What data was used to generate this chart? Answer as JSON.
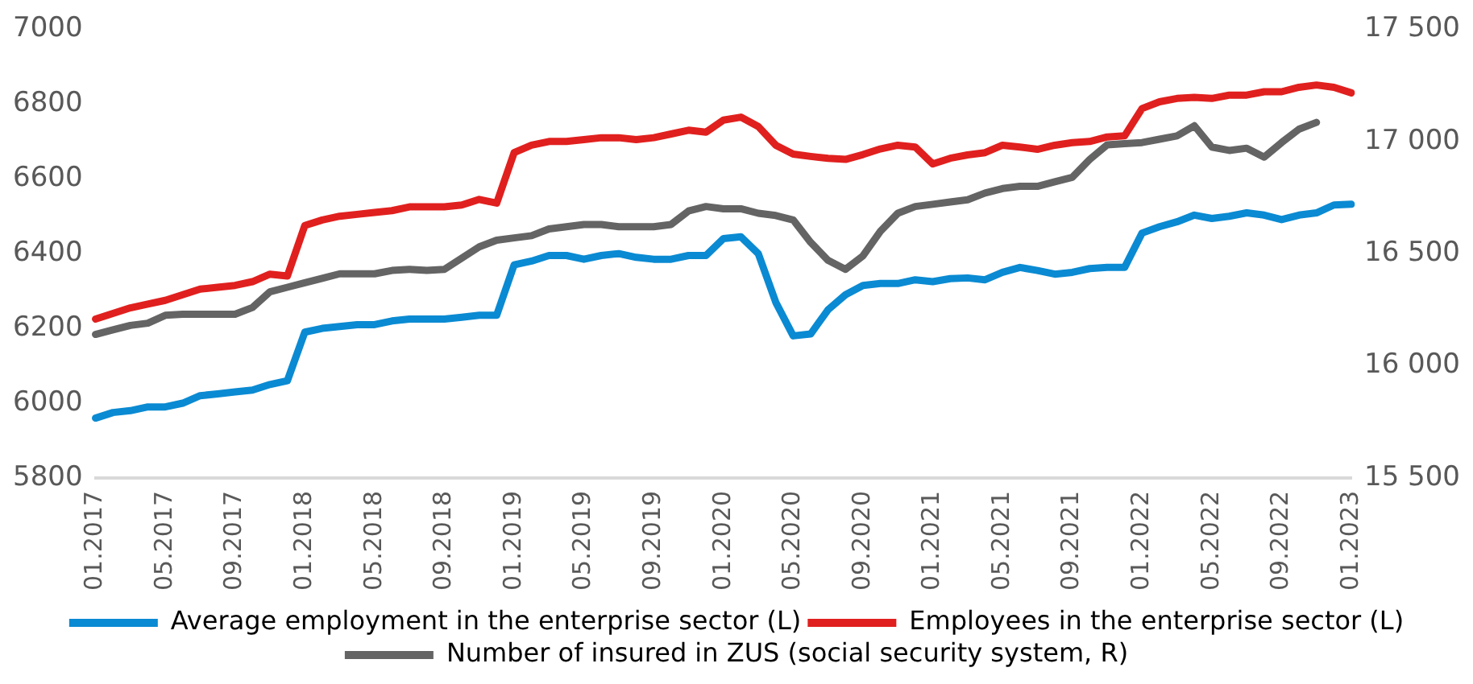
{
  "chart_data": {
    "type": "line",
    "categories": [
      "01.2017",
      null,
      null,
      null,
      "05.2017",
      null,
      null,
      null,
      "09.2017",
      null,
      null,
      null,
      "01.2018",
      null,
      null,
      null,
      "05.2018",
      null,
      null,
      null,
      "09.2018",
      null,
      null,
      null,
      "01.2019",
      null,
      null,
      null,
      "05.2019",
      null,
      null,
      null,
      "09.2019",
      null,
      null,
      null,
      "01.2020",
      null,
      null,
      null,
      "05.2020",
      null,
      null,
      null,
      "09.2020",
      null,
      null,
      null,
      "01.2021",
      null,
      null,
      null,
      "05.2021",
      null,
      null,
      null,
      "09.2021",
      null,
      null,
      null,
      "01.2022",
      null,
      null,
      null,
      "05.2022",
      null,
      null,
      null,
      "09.2022",
      null,
      null,
      null,
      "01.2023"
    ],
    "series": [
      {
        "name": "Average employment in the enterprise sector (L)",
        "color": "#0a8ad2",
        "values": [
          5960,
          5975,
          5980,
          5990,
          5990,
          6000,
          6020,
          6025,
          6030,
          6035,
          6050,
          6060,
          6190,
          6200,
          6205,
          6210,
          6210,
          6220,
          6225,
          6225,
          6225,
          6230,
          6235,
          6235,
          6370,
          6380,
          6395,
          6395,
          6385,
          6395,
          6400,
          6390,
          6385,
          6385,
          6395,
          6395,
          6440,
          6445,
          6400,
          6270,
          6180,
          6185,
          6250,
          6290,
          6315,
          6320,
          6320,
          6330,
          6325,
          6333,
          6335,
          6330,
          6350,
          6363,
          6355,
          6345,
          6350,
          6360,
          6363,
          6363,
          6455,
          6472,
          6485,
          6503,
          6494,
          6500,
          6509,
          6503,
          6491,
          6503,
          6509,
          6530,
          6532
        ]
      },
      {
        "name": "Employees in the enterprise sector (L)",
        "color": "#e0201e",
        "values": [
          6225,
          6240,
          6255,
          6265,
          6275,
          6290,
          6305,
          6310,
          6315,
          6325,
          6345,
          6340,
          6475,
          6490,
          6500,
          6505,
          6510,
          6515,
          6525,
          6525,
          6525,
          6530,
          6545,
          6535,
          6670,
          6690,
          6700,
          6700,
          6705,
          6710,
          6710,
          6705,
          6710,
          6720,
          6730,
          6725,
          6757,
          6765,
          6740,
          6690,
          6666,
          6660,
          6655,
          6652,
          6665,
          6680,
          6690,
          6685,
          6640,
          6655,
          6664,
          6670,
          6690,
          6685,
          6679,
          6690,
          6697,
          6700,
          6712,
          6715,
          6788,
          6806,
          6815,
          6818,
          6815,
          6824,
          6824,
          6833,
          6833,
          6845,
          6851,
          6845,
          6830
        ]
      },
      {
        "name": "Number of insured in ZUS (social security system, R)",
        "color": "#646464",
        "axis": "y2",
        "values": [
          16140,
          16160,
          16180,
          16190,
          16225,
          16230,
          16230,
          16230,
          16230,
          16260,
          16330,
          16350,
          16370,
          16390,
          16410,
          16410,
          16410,
          16425,
          16430,
          16425,
          16430,
          16480,
          16530,
          16560,
          16570,
          16580,
          16610,
          16620,
          16630,
          16630,
          16620,
          16620,
          16620,
          16630,
          16690,
          16710,
          16700,
          16700,
          16680,
          16670,
          16650,
          16550,
          16470,
          16430,
          16490,
          16600,
          16680,
          16710,
          16720,
          16730,
          16740,
          16770,
          16790,
          16800,
          16800,
          16820,
          16840,
          16920,
          16985,
          16990,
          16995,
          17010,
          17025,
          17070,
          16975,
          16960,
          16970,
          16930,
          16995,
          17055,
          17085,
          null,
          null
        ]
      }
    ],
    "ylim": [
      5800,
      7000
    ],
    "yticks": [
      5800,
      6000,
      6200,
      6400,
      6600,
      6800,
      7000
    ],
    "y2lim": [
      15500,
      17500
    ],
    "y2ticks": [
      {
        "value": 15500,
        "label": "15 500"
      },
      {
        "value": 16000,
        "label": "16 000"
      },
      {
        "value": 16500,
        "label": "16 500"
      },
      {
        "value": 17000,
        "label": "17 000"
      },
      {
        "value": 17500,
        "label": "17 500"
      }
    ],
    "grid": false,
    "legend": "bottom",
    "marker": "none",
    "line_style": "solid"
  }
}
